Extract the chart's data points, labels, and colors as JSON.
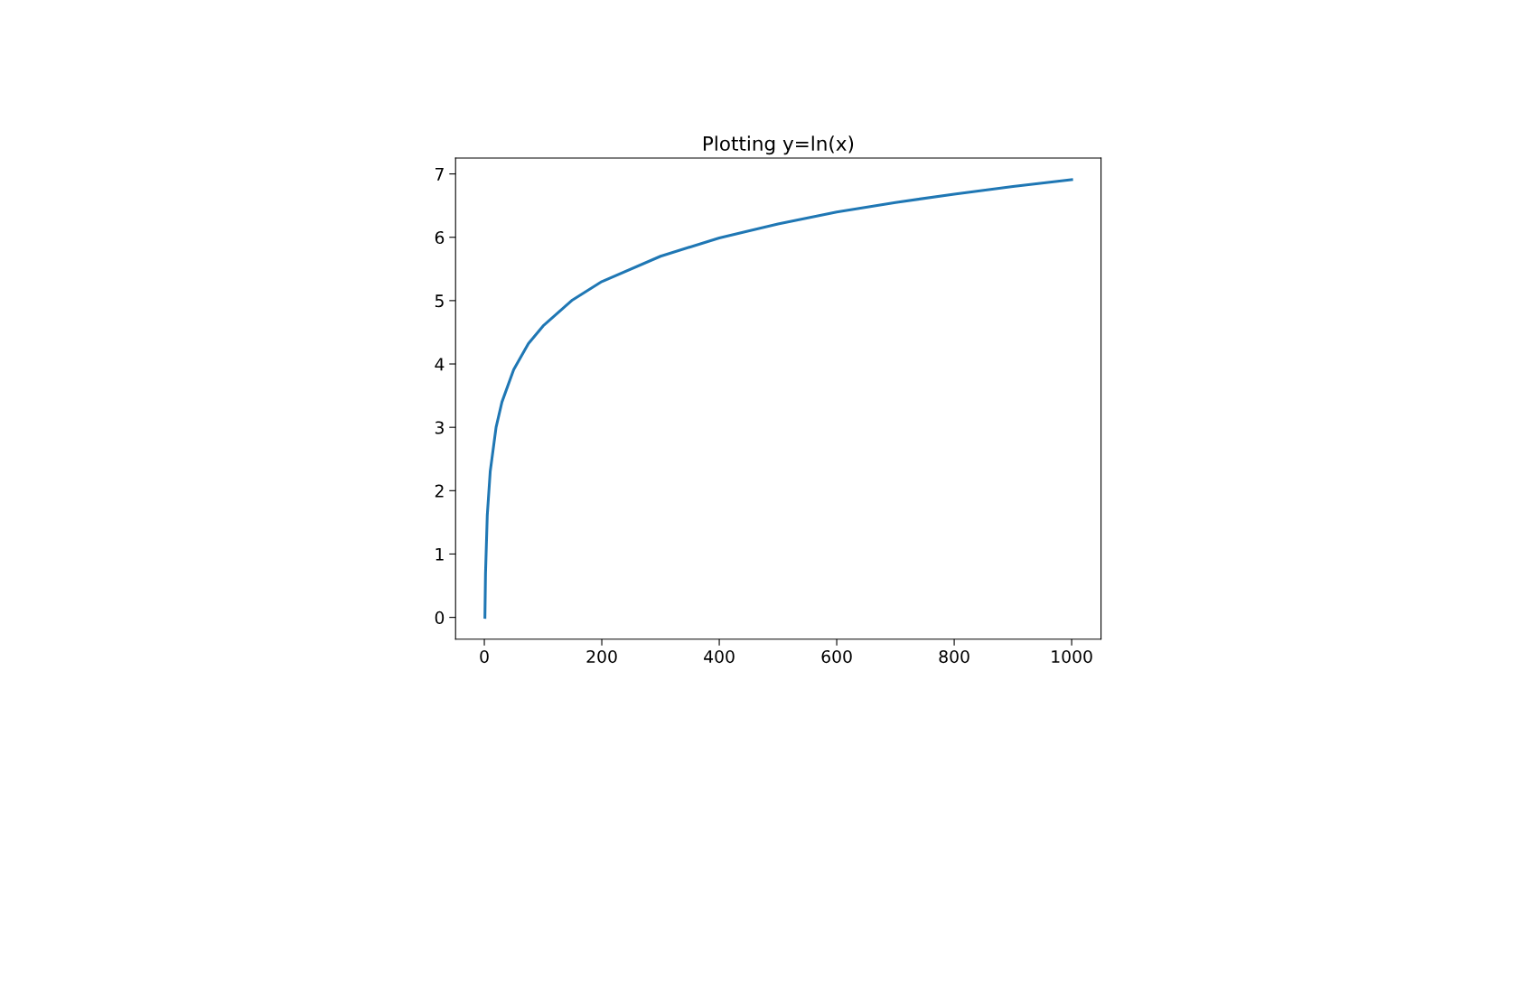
{
  "chart_data": {
    "type": "line",
    "title": "Plotting y=ln(x)",
    "x": [
      1,
      2,
      5,
      10,
      20,
      30,
      50,
      75,
      100,
      150,
      200,
      300,
      400,
      500,
      600,
      700,
      800,
      900,
      1000
    ],
    "series": [
      {
        "color": "#1f77b4",
        "values": [
          0,
          0.69,
          1.61,
          2.3,
          3.0,
          3.4,
          3.91,
          4.32,
          4.6,
          5.01,
          5.3,
          5.7,
          5.99,
          6.21,
          6.4,
          6.55,
          6.68,
          6.8,
          6.91
        ]
      }
    ],
    "xlim": [
      -48.95,
      1049.95
    ],
    "ylim": [
      -0.345,
      7.25
    ],
    "xticks": [
      0,
      200,
      400,
      600,
      800,
      1000
    ],
    "yticks": [
      0,
      1,
      2,
      3,
      4,
      5,
      6,
      7
    ],
    "grid": false,
    "legend": false,
    "marker": "none",
    "line_style": "solid"
  }
}
